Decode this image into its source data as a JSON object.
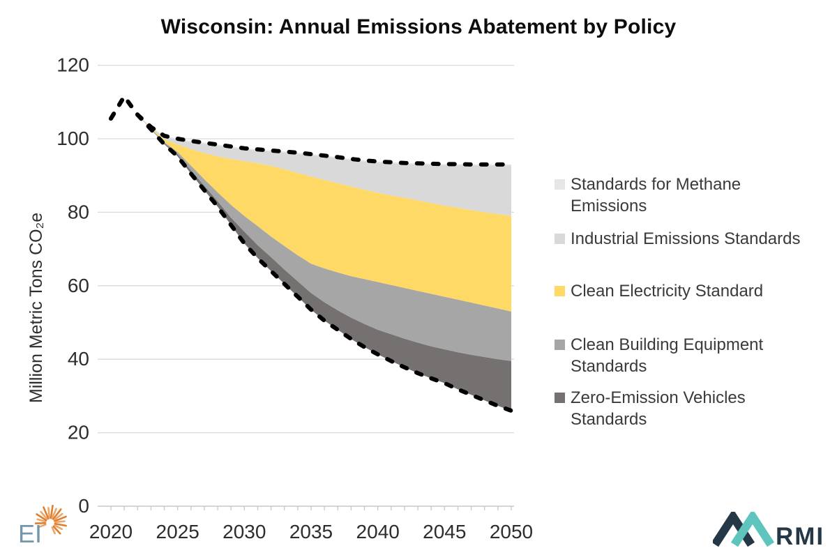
{
  "title": "Wisconsin: Annual Emissions Abatement by Policy",
  "y_axis": {
    "label": "Million Metric Tons CO₂e",
    "ticks": [
      0,
      20,
      40,
      60,
      80,
      100,
      120
    ]
  },
  "x_axis": {
    "ticks": [
      2020,
      2025,
      2030,
      2035,
      2040,
      2045,
      2050
    ]
  },
  "legend": [
    {
      "label_lines": [
        "Standards for Methane",
        "Emissions"
      ],
      "label": "Standards for Methane Emissions",
      "color": "#e7e6e6"
    },
    {
      "label_lines": [
        "Industrial Emissions Standards"
      ],
      "label": "Industrial Emissions Standards",
      "color": "#d9d9d9"
    },
    {
      "label_lines": [
        "Clean Electricity Standard"
      ],
      "label": "Clean Electricity Standard",
      "color": "#ffd966"
    },
    {
      "label_lines": [
        "Clean Building Equipment",
        "Standards"
      ],
      "label": "Clean Building Equipment Standards",
      "color": "#a6a6a6"
    },
    {
      "label_lines": [
        "Zero-Emission Vehicles",
        "Standards"
      ],
      "label": "Zero-Emission Vehicles Standards",
      "color": "#767171"
    }
  ],
  "footer": {
    "ei_text": "EI",
    "rmi_text": "RMI"
  },
  "colors": {
    "gridline": "#d9d9d9",
    "axis_line": "#c8c8c8",
    "tick_text": "#2d2d2d",
    "dashed_line": "#000000",
    "ei_blue": "#7296ac",
    "ei_orange": "#dd7f2f",
    "rmi_navy": "#253847",
    "rmi_teal": "#5fc4bd"
  },
  "chart_data": {
    "type": "area",
    "title": "Wisconsin: Annual Emissions Abatement by Policy",
    "xlabel": "",
    "ylabel": "Million Metric Tons CO2e",
    "ylim": [
      0,
      120
    ],
    "xlim": [
      2020,
      2050
    ],
    "grid": "horizontal",
    "legend_position": "right",
    "years": [
      2020,
      2021,
      2022,
      2023,
      2024,
      2025,
      2026,
      2027,
      2028,
      2029,
      2030,
      2031,
      2032,
      2033,
      2034,
      2035,
      2036,
      2037,
      2038,
      2039,
      2040,
      2041,
      2042,
      2043,
      2044,
      2045,
      2046,
      2047,
      2048,
      2049,
      2050
    ],
    "boundaries": {
      "policy": [
        105.5,
        111.5,
        106.5,
        102.6,
        98.5,
        95.2,
        90.5,
        86,
        81.5,
        76.5,
        71.5,
        67.5,
        64,
        60.5,
        57,
        53.5,
        50.5,
        48,
        45.5,
        43.3,
        41.3,
        39.5,
        37.8,
        36.2,
        34.8,
        33.5,
        31.8,
        30.3,
        28.8,
        27.3,
        26
      ],
      "zev_top": [
        105.5,
        111.5,
        106.5,
        102.7,
        98.8,
        95.8,
        91.4,
        87.2,
        83,
        78.5,
        74.7,
        71,
        67.8,
        64.4,
        61.2,
        58,
        55.5,
        53.3,
        51.3,
        49.6,
        48,
        46.8,
        45.6,
        44.5,
        43.5,
        42.7,
        41.9,
        41.2,
        40.6,
        40,
        39.5
      ],
      "building_top": [
        105.5,
        111.5,
        106.5,
        102.8,
        99.1,
        96.4,
        92.7,
        89,
        85.4,
        82,
        79,
        76.2,
        73.4,
        70.8,
        68.3,
        66,
        64.7,
        63.6,
        62.6,
        61.8,
        61,
        60.2,
        59.4,
        58.6,
        57.8,
        57,
        56.2,
        55.4,
        54.6,
        53.8,
        53
      ],
      "electricity_top": [
        105.5,
        111.5,
        106.5,
        103,
        99.8,
        98.4,
        97.2,
        96.1,
        95.2,
        94.5,
        93.9,
        93.3,
        92.6,
        91.7,
        90.7,
        89.7,
        88.8,
        87.9,
        87,
        86.1,
        85.3,
        84.6,
        83.9,
        83.2,
        82.5,
        81.8,
        81.2,
        80.6,
        80,
        79.5,
        79
      ],
      "industrial_top": [
        105.5,
        111.5,
        106.5,
        103.1,
        100.5,
        99.7,
        99.1,
        98.6,
        98.1,
        97.6,
        97.1,
        96.8,
        96.5,
        96.2,
        95.9,
        95.5,
        95.1,
        94.7,
        94.2,
        93.8,
        93.5,
        93.3,
        93.1,
        93,
        92.9,
        92.8,
        92.8,
        92.7,
        92.7,
        92.7,
        92.7
      ],
      "baseline": [
        105.5,
        111.5,
        106.5,
        103.2,
        100.8,
        100,
        99.4,
        98.9,
        98.4,
        97.9,
        97.4,
        97.1,
        96.8,
        96.5,
        96.2,
        95.8,
        95.4,
        95,
        94.5,
        94.1,
        93.8,
        93.6,
        93.4,
        93.3,
        93.2,
        93.1,
        93.1,
        93,
        93,
        93,
        93
      ]
    },
    "bands": [
      {
        "name": "Zero-Emission Vehicles Standards",
        "lower": "policy",
        "upper": "zev_top",
        "color": "#767171"
      },
      {
        "name": "Clean Building Equipment Standards",
        "lower": "zev_top",
        "upper": "building_top",
        "color": "#a6a6a6"
      },
      {
        "name": "Clean Electricity Standard",
        "lower": "building_top",
        "upper": "electricity_top",
        "color": "#ffd966"
      },
      {
        "name": "Industrial Emissions Standards",
        "lower": "electricity_top",
        "upper": "industrial_top",
        "color": "#d9d9d9"
      },
      {
        "name": "Standards for Methane Emissions",
        "lower": "industrial_top",
        "upper": "baseline",
        "color": "#e7e6e6"
      }
    ],
    "lines": [
      {
        "name": "Baseline emissions",
        "key": "baseline",
        "color": "#000000",
        "dashed": true
      },
      {
        "name": "Policy scenario emissions",
        "key": "policy",
        "color": "#000000",
        "dashed": true
      }
    ]
  }
}
